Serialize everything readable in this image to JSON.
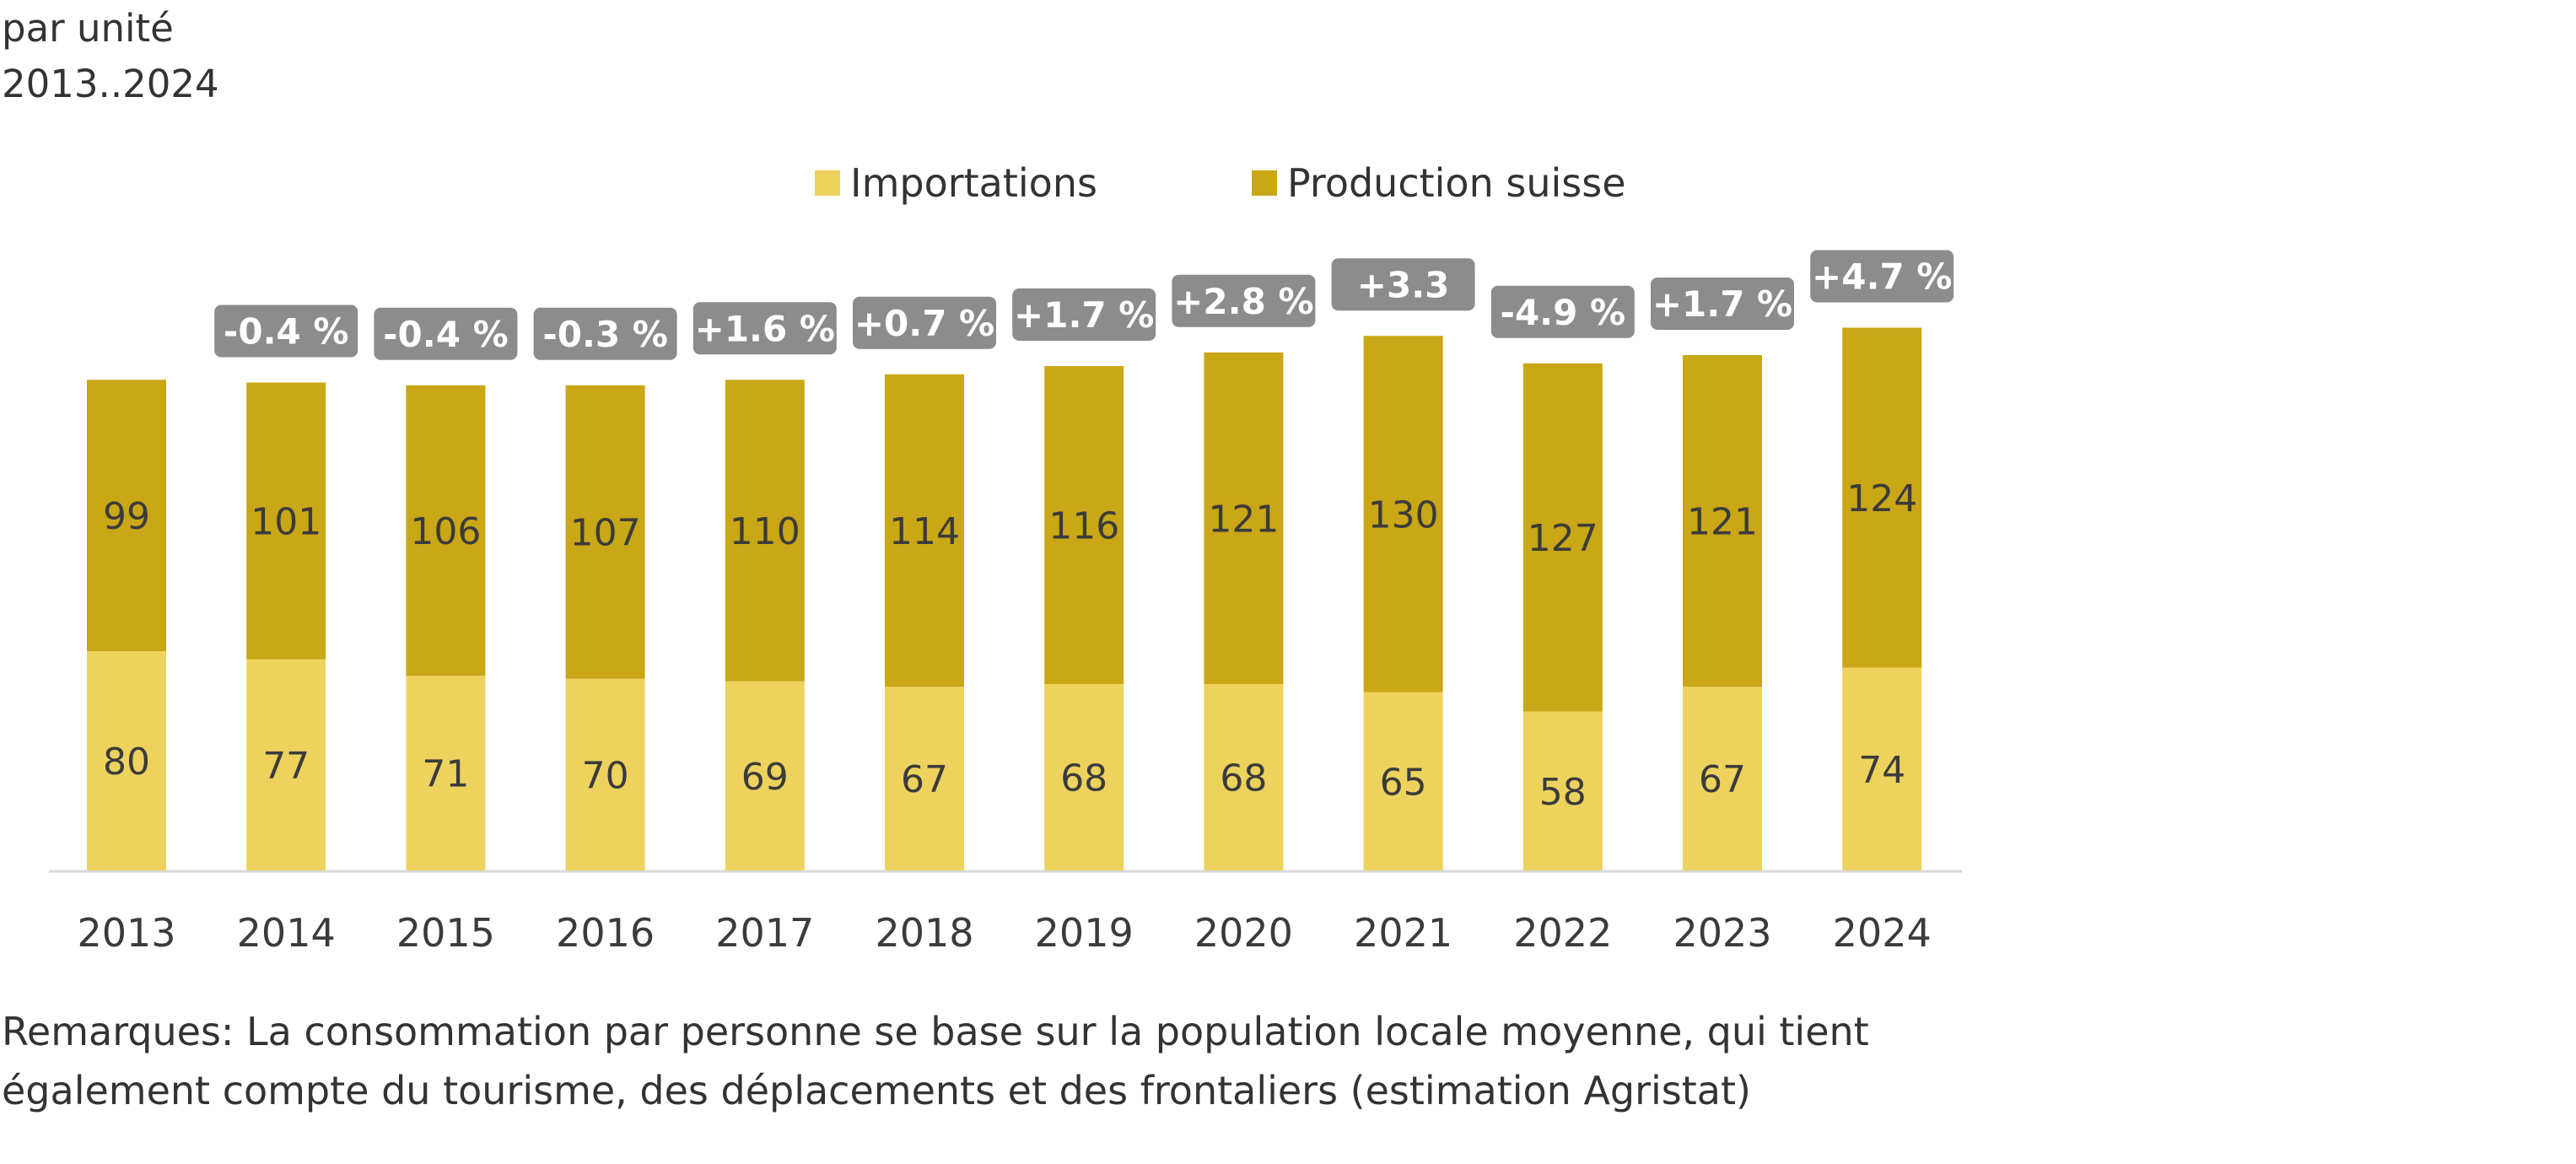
{
  "header": {
    "unit": "par unité",
    "period": "2013..2024"
  },
  "legend": {
    "items": [
      {
        "label": "Importations",
        "color": "#EDD35E"
      },
      {
        "label": "Production suisse",
        "color": "#C9A716"
      }
    ]
  },
  "notes": {
    "line1": "Remarques: La consommation par personne se base sur la population locale moyenne, qui tient",
    "line2": "également compte du tourisme, des déplacements et des frontaliers (estimation Agristat)"
  },
  "chart_data": {
    "type": "bar",
    "stacked": true,
    "categories": [
      "2013",
      "2014",
      "2015",
      "2016",
      "2017",
      "2018",
      "2019",
      "2020",
      "2021",
      "2022",
      "2023",
      "2024"
    ],
    "series": [
      {
        "name": "Importations",
        "color": "#EDD35E",
        "values": [
          80,
          77,
          71,
          70,
          69,
          67,
          68,
          68,
          65,
          58,
          67,
          74
        ]
      },
      {
        "name": "Production suisse",
        "color": "#C9A716",
        "values": [
          99,
          101,
          106,
          107,
          110,
          114,
          116,
          121,
          130,
          127,
          121,
          124
        ]
      }
    ],
    "change_labels": [
      "",
      "-0.4 %",
      "-0.4 %",
      "-0.3 %",
      "+1.6 %",
      "+0.7 %",
      "+1.7 %",
      "+2.8 %",
      "+3.3",
      "-4.9 %",
      "+1.7 %",
      "+4.7 %"
    ],
    "change_label_color": "#8C8C8C",
    "axis_color": "#D9D9D9",
    "ylim": [
      0,
      200
    ],
    "grid": false,
    "legend_position": "top-center"
  }
}
